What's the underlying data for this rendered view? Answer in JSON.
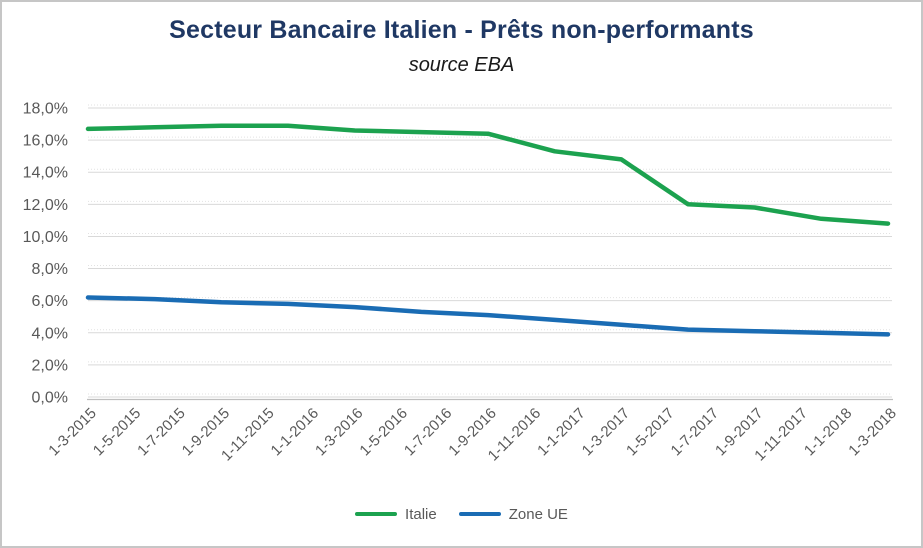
{
  "window": {
    "background": "#ffffff",
    "border_color": "#c6c6c6"
  },
  "chart_data": {
    "type": "line",
    "title": "Secteur Bancaire Italien - Prêts non-performants",
    "subtitle": "source EBA",
    "title_color": "#1f3864",
    "axis_text_color": "#595959",
    "gridline_color": "#d9d9d9",
    "minor_dot_color": "#e2e2e2",
    "axis_line_color": "#bfbfbf",
    "grid": true,
    "legend_position": "bottom",
    "ylim": [
      0,
      18
    ],
    "y_ticks": {
      "values": [
        18,
        16,
        14,
        12,
        10,
        8,
        6,
        4,
        2,
        0
      ],
      "labels": [
        "18,0%",
        "16,0%",
        "14,0%",
        "12,0%",
        "10,0%",
        "8,0%",
        "6,0%",
        "4,0%",
        "2,0%",
        "0,0%"
      ]
    },
    "x_axis_labels": [
      "1-3-2015",
      "1-5-2015",
      "1-7-2015",
      "1-9-2015",
      "1-11-2015",
      "1-1-2016",
      "1-3-2016",
      "1-5-2016",
      "1-7-2016",
      "1-9-2016",
      "1-11-2016",
      "1-1-2017",
      "1-3-2017",
      "1-5-2017",
      "1-7-2017",
      "1-9-2017",
      "1-11-2017",
      "1-1-2018",
      "1-3-2018"
    ],
    "x_dates": [
      "1-3-2015",
      "1-6-2015",
      "1-9-2015",
      "1-12-2015",
      "1-3-2016",
      "1-6-2016",
      "1-9-2016",
      "1-12-2016",
      "1-3-2017",
      "1-6-2017",
      "1-9-2017",
      "1-12-2017",
      "1-3-2018"
    ],
    "series": [
      {
        "name": "Italie",
        "color": "#1ca24f",
        "values": [
          16.7,
          16.8,
          16.9,
          16.9,
          16.6,
          16.5,
          16.4,
          15.3,
          14.8,
          12.0,
          11.8,
          11.1,
          10.8
        ]
      },
      {
        "name": "Zone UE",
        "color": "#1a6cb4",
        "values": [
          6.2,
          6.1,
          5.9,
          5.8,
          5.6,
          5.3,
          5.1,
          4.8,
          4.5,
          4.2,
          4.1,
          4.0,
          3.9
        ]
      }
    ]
  }
}
